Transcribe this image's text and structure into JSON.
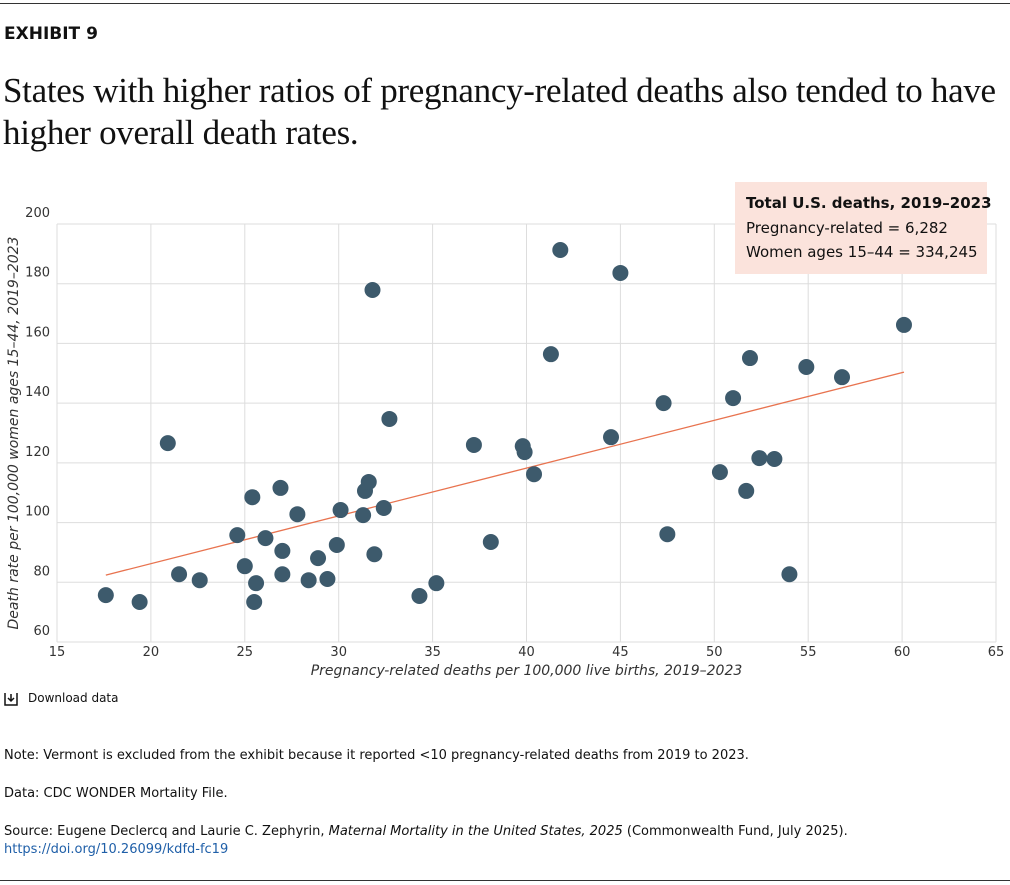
{
  "header": {
    "label": "EXHIBIT 9",
    "title": "States with higher ratios of pregnancy-related deaths also tended to have higher overall death rates."
  },
  "chart_data": {
    "type": "scatter",
    "xlabel": "Pregnancy-related deaths per 100,000 live births, 2019–2023",
    "ylabel": "Death rate per 100,000 women ages 15–44, 2019–2023",
    "x": [
      17.6,
      19.4,
      20.9,
      21.5,
      22.6,
      24.6,
      25.0,
      25.4,
      25.6,
      25.5,
      26.1,
      26.9,
      27.0,
      27.0,
      27.8,
      28.4,
      28.9,
      29.4,
      29.9,
      30.1,
      31.3,
      31.4,
      31.6,
      31.8,
      31.9,
      32.4,
      32.7,
      34.3,
      35.2,
      37.2,
      38.1,
      39.8,
      39.9,
      40.4,
      41.3,
      41.8,
      44.5,
      45.0,
      47.3,
      47.5,
      50.3,
      51.0,
      51.7,
      51.9,
      52.4,
      53.2,
      54.0,
      54.9,
      56.8,
      60.1
    ],
    "y": [
      75.7,
      73.4,
      126.6,
      82.7,
      80.7,
      95.8,
      85.4,
      108.5,
      79.7,
      73.4,
      94.8,
      111.6,
      90.5,
      82.7,
      102.8,
      80.7,
      88.1,
      81.1,
      92.5,
      104.2,
      102.5,
      110.6,
      113.6,
      177.9,
      89.4,
      104.9,
      134.7,
      75.4,
      79.7,
      126.0,
      93.5,
      125.6,
      123.6,
      116.2,
      156.4,
      191.3,
      128.6,
      183.6,
      140.0,
      96.1,
      116.9,
      141.7,
      110.6,
      155.1,
      121.6,
      121.3,
      82.7,
      152.1,
      148.7,
      166.2
    ],
    "color": "#3d5a6c",
    "trendline": {
      "x": [
        17.6,
        60.1
      ],
      "y": [
        82.4,
        150.4
      ],
      "color": "#e8734f"
    },
    "xlim": [
      15,
      65
    ],
    "xticks": [
      15,
      20,
      25,
      30,
      35,
      40,
      45,
      50,
      55,
      60,
      65
    ],
    "ylim": [
      60,
      200
    ],
    "yticks": [
      60,
      80,
      100,
      120,
      140,
      160,
      180,
      200
    ],
    "grid": true,
    "annotation": {
      "title": "Total U.S. deaths, 2019–2023",
      "lines": [
        "Pregnancy-related = 6,282",
        "Women ages 15–44 = 334,245"
      ],
      "color": "#fbe3dc"
    }
  },
  "download": "Download data",
  "notes": [
    "Note: Vermont is excluded from the exhibit because it reported <10 pregnancy-related deaths from 2019 to 2023.",
    "Data: CDC WONDER Mortality File."
  ],
  "source": {
    "prefix": "Source: Eugene Declercq and Laurie C. Zephyrin, ",
    "italic": "Maternal Mortality in the United States, 2025",
    "suffix": " (Commonwealth Fund, July 2025).",
    "link": "https://doi.org/10.26099/kdfd-fc19"
  }
}
